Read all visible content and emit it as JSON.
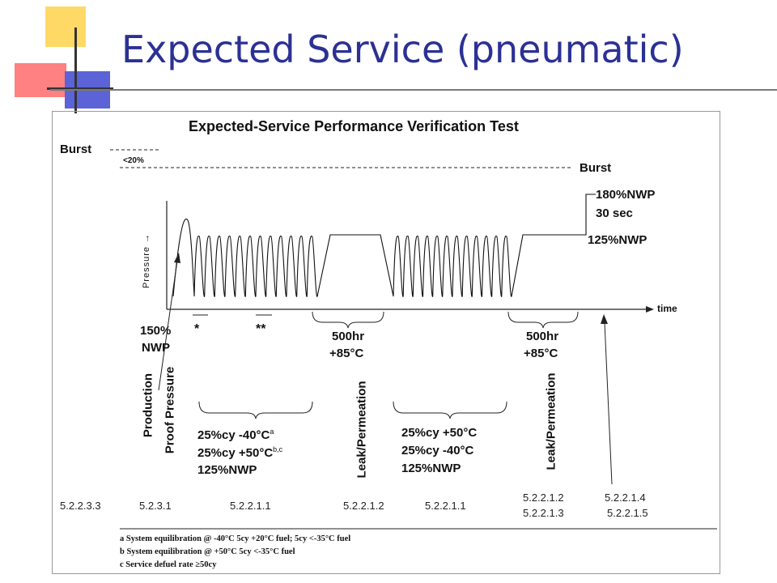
{
  "slide": {
    "title": "Expected Service (pneumatic)"
  },
  "diagram": {
    "title": "Expected-Service Performance Verification Test",
    "burst_left": "Burst",
    "lt20": "<20%",
    "burst_right": "Burst",
    "nwp180": "180%NWP",
    "sec30": "30 sec",
    "nwp125": "125%NWP",
    "pressure_axis": "Pressure",
    "time_axis": "time",
    "nwp150_line1": "150%",
    "nwp150_line2": "NWP",
    "star1": "*",
    "star2": "**",
    "hold1_line1": "500hr",
    "hold1_line2": "+85°C",
    "hold2_line1": "500hr",
    "hold2_line2": "+85°C",
    "production_line1": "Production",
    "production_line2": "Proof Pressure",
    "leak1": "Leak/Permeation",
    "leak2": "Leak/Permeation",
    "cycles1": {
      "l1a": "25%cy  -40°C",
      "l1sup": "a",
      "l2a": "25%cy  +50°C",
      "l2sup": "b,c",
      "l3": "125%NWP"
    },
    "cycles2": {
      "l1": "25%cy  +50°C",
      "l2": "25%cy  -40°C",
      "l3": "125%NWP"
    },
    "refs": {
      "r1": "5.2.2.3.3",
      "r2": "5.2.3.1",
      "r3": "5.2.2.1.1",
      "r4": "5.2.2.1.2",
      "r5": "5.2.2.1.1",
      "r6a": "5.2.2.1.2",
      "r6b": "5.2.2.1.3",
      "r7a": "5.2.2.1.4",
      "r7b": "5.2.2.1.5"
    },
    "notes": {
      "a": "a System equilibration @ -40°C 5cy +20°C fuel; 5cy <-35°C fuel",
      "b": "b System equilibration @ +50°C  5cy <-35°C fuel",
      "c": "c  Service defuel rate ≥50cy"
    }
  }
}
